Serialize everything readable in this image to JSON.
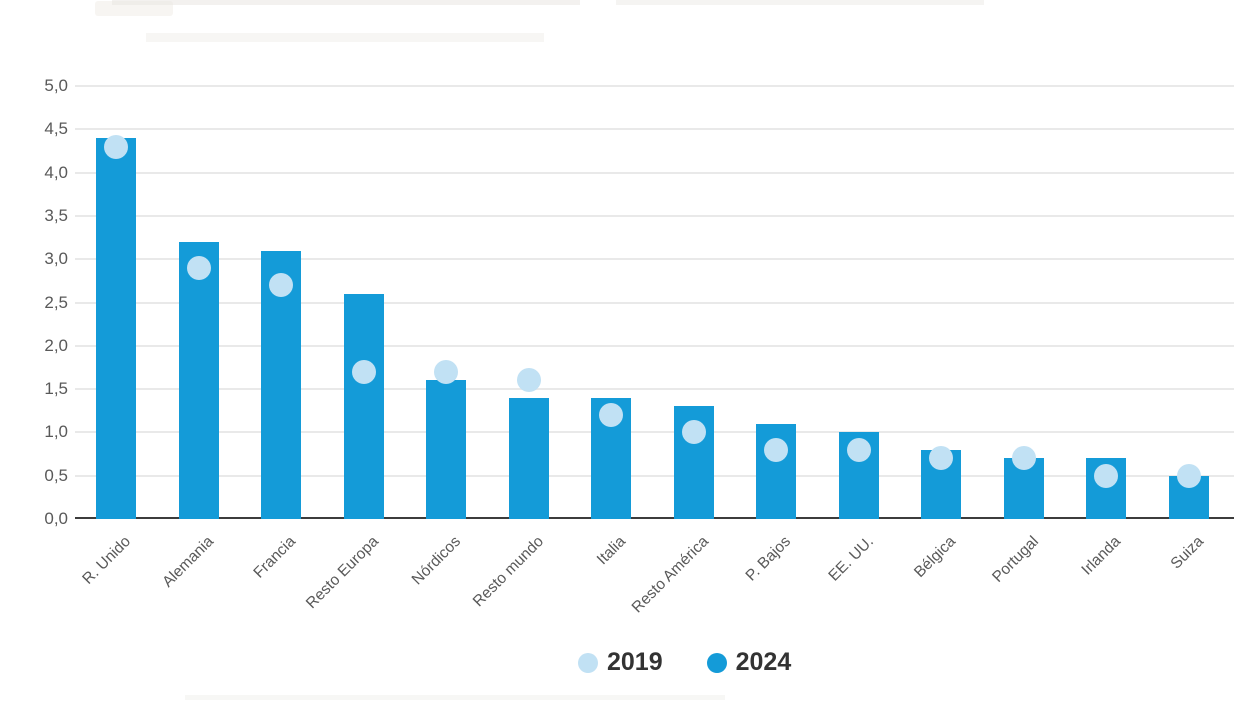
{
  "chart_data": {
    "type": "bar",
    "categories": [
      "R. Unido",
      "Alemania",
      "Francia",
      "Resto Europa",
      "Nórdicos",
      "Resto mundo",
      "Italia",
      "Resto América",
      "P. Bajos",
      "EE. UU.",
      "Bélgica",
      "Portugal",
      "Irlanda",
      "Suiza"
    ],
    "series": [
      {
        "name": "2019",
        "mark": "dot",
        "color": "#c1e1f4",
        "values": [
          4.3,
          2.9,
          2.7,
          1.7,
          1.7,
          1.6,
          1.2,
          1.0,
          0.8,
          0.8,
          0.7,
          0.7,
          0.5,
          0.5
        ]
      },
      {
        "name": "2024",
        "mark": "bar",
        "color": "#149bd8",
        "values": [
          4.4,
          3.2,
          3.1,
          2.6,
          1.6,
          1.4,
          1.4,
          1.3,
          1.1,
          1.0,
          0.8,
          0.7,
          0.7,
          0.5
        ]
      }
    ],
    "ylim": [
      0,
      5
    ],
    "ytick_step": 0.5,
    "ytick_labels": [
      "5,0",
      "4,5",
      "4,0",
      "3,5",
      "3,0",
      "2,5",
      "2,0",
      "1,5",
      "1,0",
      "0,5",
      "0,0"
    ],
    "decimal_separator": ",",
    "grid": true,
    "legend_position": "bottom-center",
    "colors": {
      "grid": "#e9e9e9",
      "axis_line": "#3c3c3c",
      "tick_label": "#595959",
      "legend_text": "#333333"
    }
  }
}
